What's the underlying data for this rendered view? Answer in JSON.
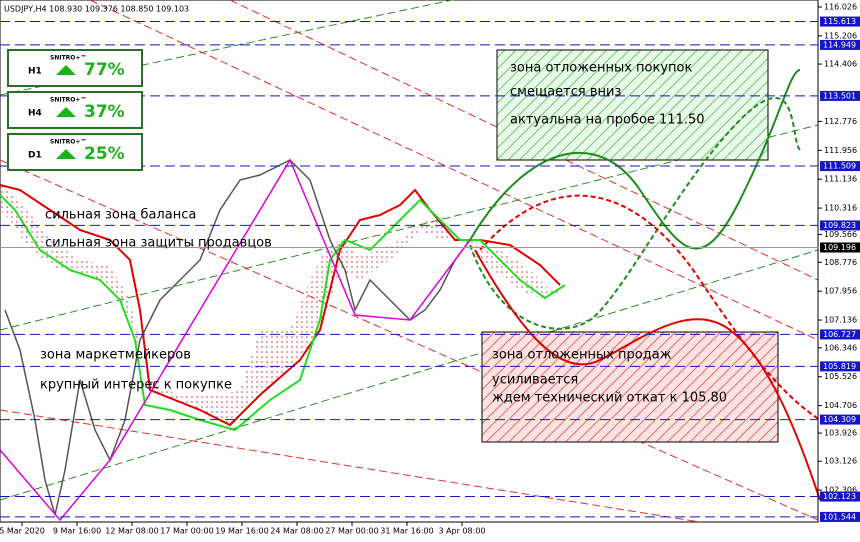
{
  "header": "USDJPY,H4  108.930 109.376 108.850 109.103",
  "signals": [
    {
      "timeframe": "H1",
      "label": "SNITRO+™",
      "value": "77%"
    },
    {
      "timeframe": "H4",
      "label": "SNITRO+™",
      "value": "37%"
    },
    {
      "timeframe": "D1",
      "label": "SNITRO+™",
      "value": "25%"
    }
  ],
  "price_axis": {
    "range": [
      101.4,
      116.225
    ],
    "ticks": [
      116.026,
      115.206,
      114.406,
      112.776,
      111.956,
      111.136,
      110.316,
      109.566,
      108.776,
      107.956,
      107.136,
      106.346,
      105.526,
      104.706,
      103.926,
      103.126,
      102.306
    ],
    "levels": [
      115.613,
      114.949,
      113.501,
      111.509,
      109.823,
      106.727,
      105.819,
      104.309,
      102.123,
      101.544
    ],
    "current": 109.196
  },
  "time_axis": [
    "5 Mar 2020",
    "9 Mar 16:00",
    "12 Mar 08:00",
    "17 Mar 00:00",
    "19 Mar 16:00",
    "24 Mar 08:00",
    "27 Mar 00:00",
    "31 Mar 16:00",
    "3 Apr 08:00"
  ],
  "annotations": [
    "зона отложенных покупок",
    "смещается вниз",
    "актуальна на пробое 111.50",
    "сильная зона баланса",
    "сильная зона защиты продавцов",
    "зона маркетмейкеров",
    "крупный интерес к покупке",
    "зона отложенных продаж",
    "усиливается",
    "ждем технический откат к 105.80"
  ]
}
